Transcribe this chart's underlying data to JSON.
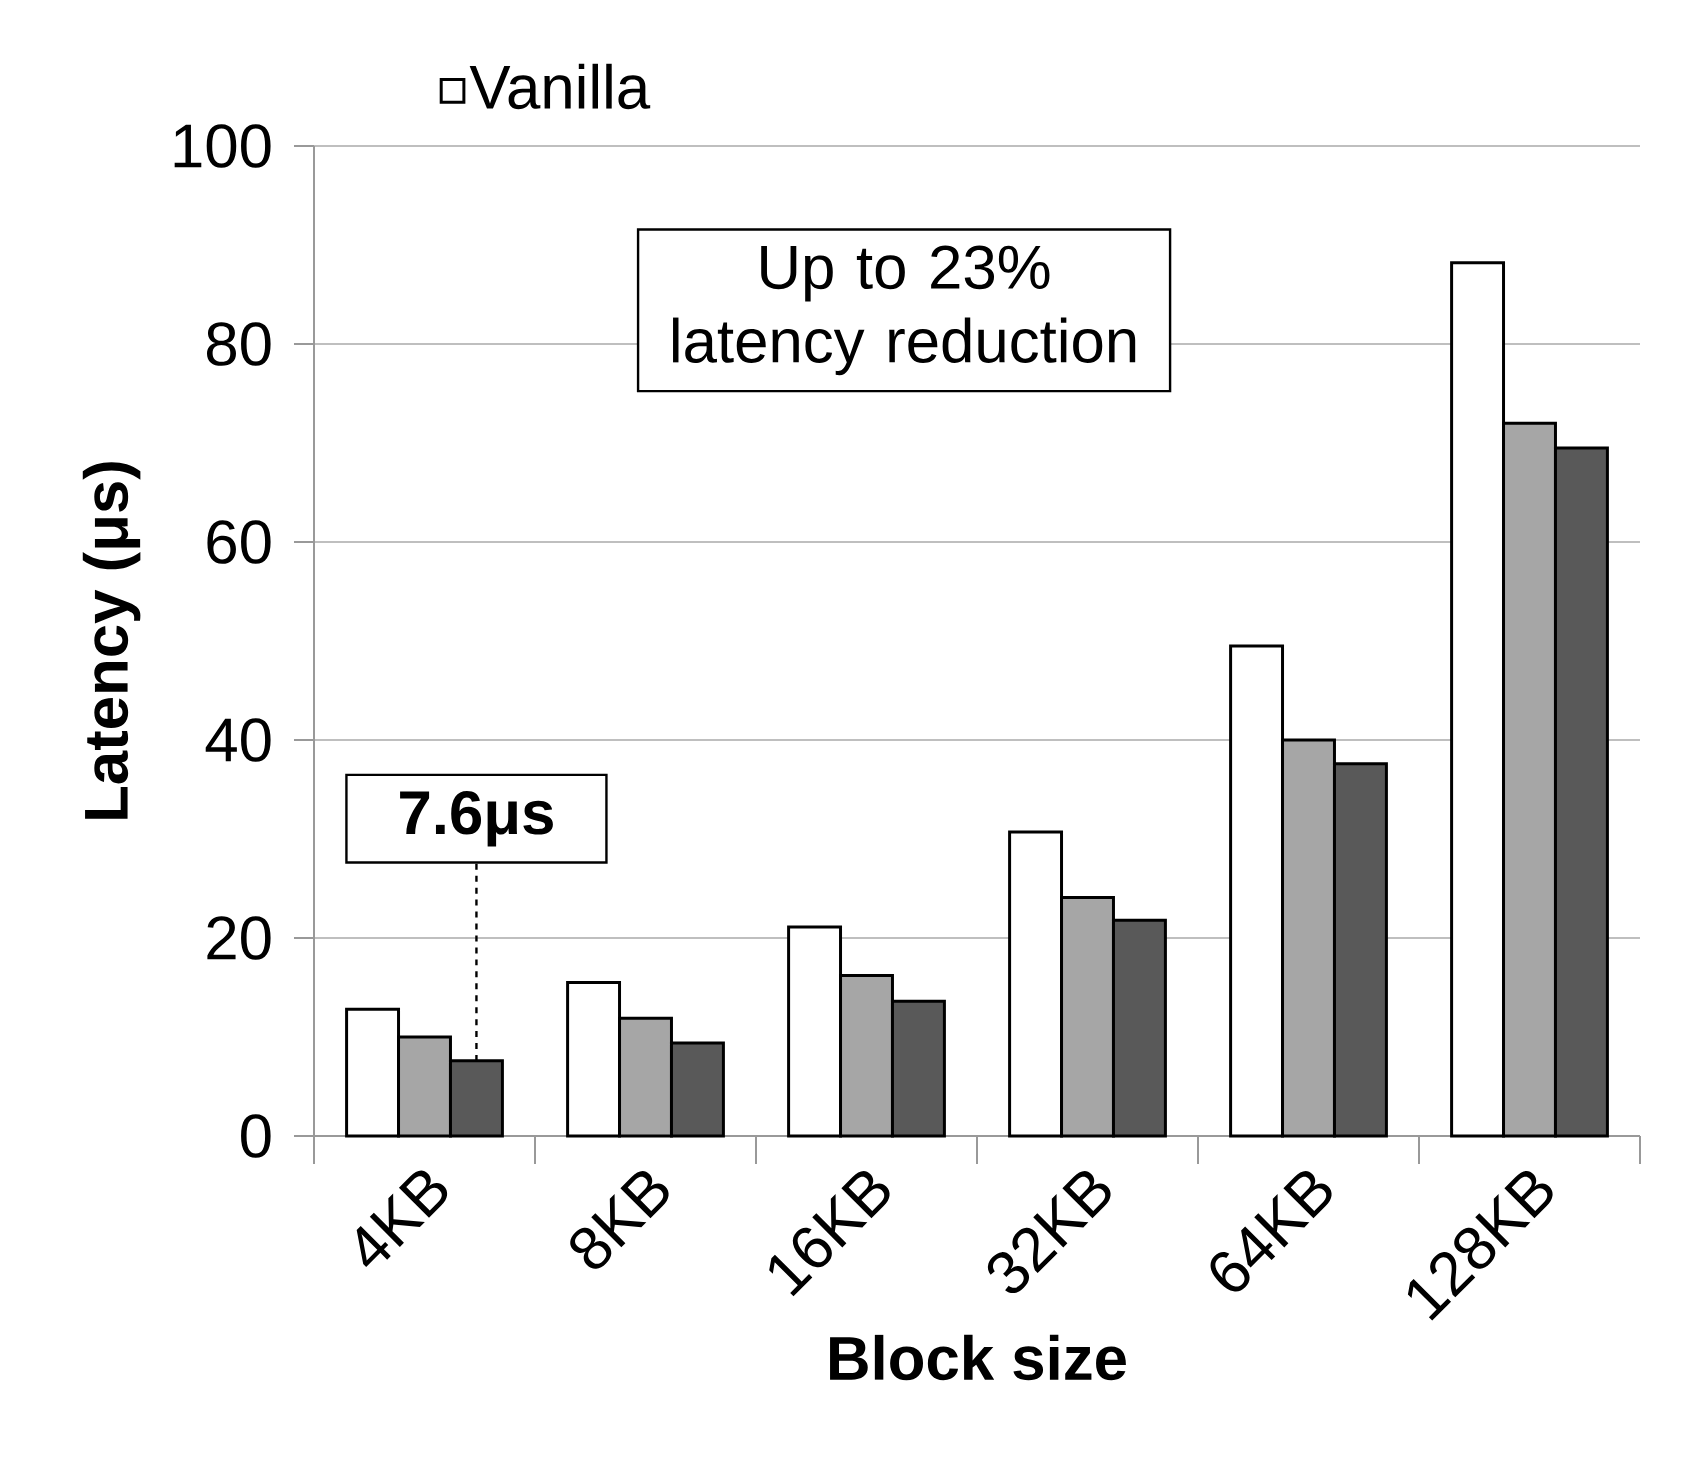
{
  "chart_data": {
    "type": "bar",
    "xlabel": "Block size",
    "ylabel": "Latency (μs)",
    "categories": [
      "4KB",
      "8KB",
      "16KB",
      "32KB",
      "64KB",
      "128KB"
    ],
    "series": [
      {
        "name": "Vanilla",
        "color": "#ffffff",
        "values": [
          12.8,
          15.5,
          21.1,
          30.7,
          49.5,
          88.2
        ]
      },
      {
        "color": "#a6a6a6",
        "values": [
          10.0,
          11.9,
          16.2,
          24.1,
          40.0,
          72.0
        ]
      },
      {
        "color": "#595959",
        "values": [
          7.6,
          9.4,
          13.6,
          21.8,
          37.6,
          69.5
        ]
      }
    ],
    "ylim": [
      0,
      100
    ],
    "yticks": [
      0,
      20,
      40,
      60,
      80,
      100
    ],
    "grid": "y",
    "legend": "top",
    "annotations": [
      "Up to 23% latency reduction",
      {
        "text": "7.6μs",
        "y": 7.6
      }
    ]
  }
}
